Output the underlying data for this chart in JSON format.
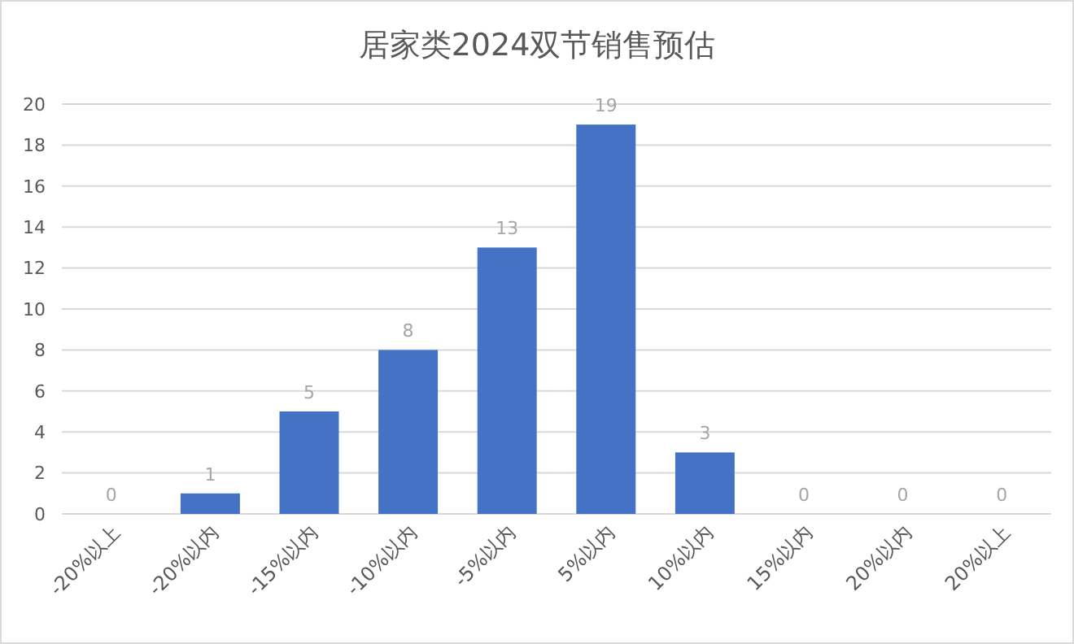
{
  "chart_data": {
    "type": "bar",
    "title": "居家类2024双节销售预估",
    "categories": [
      "-20%以上",
      "-20%以内",
      "-15%以内",
      "-10%以内",
      "-5%以内",
      "5%以内",
      "10%以内",
      "15%以内",
      "20%以内",
      "20%以上"
    ],
    "values": [
      0,
      1,
      5,
      8,
      13,
      19,
      3,
      0,
      0,
      0
    ],
    "color": "#4472c4",
    "ylim": [
      0,
      20
    ],
    "yticks": [
      0,
      2,
      4,
      6,
      8,
      10,
      12,
      14,
      16,
      18,
      20
    ],
    "grid": "y",
    "data_labels": true
  }
}
